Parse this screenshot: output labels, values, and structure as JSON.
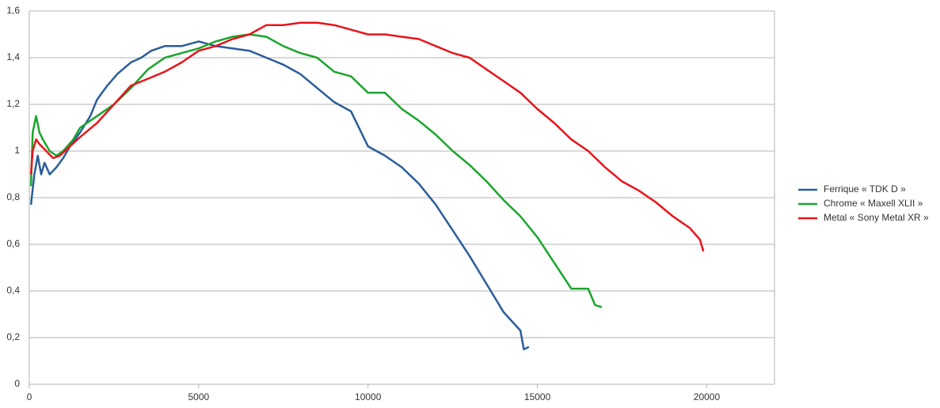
{
  "chart_data": {
    "type": "line",
    "xlim": [
      0,
      22000
    ],
    "xticks": [
      0,
      5000,
      10000,
      15000,
      20000
    ],
    "ylim": [
      0,
      1.6
    ],
    "yticks": [
      0,
      {
        "value": 0.2,
        "label": "0,2"
      },
      {
        "value": 0.4,
        "label": "0,4"
      },
      {
        "value": 0.6,
        "label": "0,6"
      },
      {
        "value": 0.8,
        "label": "0,8"
      },
      1,
      {
        "value": 1.2,
        "label": "1,2"
      },
      {
        "value": 1.4,
        "label": "1,4"
      },
      {
        "value": 1.6,
        "label": "1,6"
      }
    ],
    "grid": true,
    "legend": "right",
    "series": [
      {
        "name": "Ferrique « TDK D »",
        "color": "#2a5d9a",
        "x": [
          50,
          150,
          250,
          350,
          450,
          600,
          800,
          1000,
          1200,
          1500,
          1800,
          2000,
          2300,
          2600,
          3000,
          3300,
          3600,
          4000,
          4500,
          5000,
          5500,
          6000,
          6500,
          7000,
          7500,
          8000,
          8500,
          9000,
          9500,
          10000,
          10500,
          11000,
          11500,
          12000,
          12500,
          13000,
          13500,
          14000,
          14500,
          14600,
          14750
        ],
        "values": [
          0.77,
          0.9,
          0.98,
          0.9,
          0.95,
          0.9,
          0.93,
          0.97,
          1.02,
          1.08,
          1.15,
          1.22,
          1.28,
          1.33,
          1.38,
          1.4,
          1.43,
          1.45,
          1.45,
          1.47,
          1.45,
          1.44,
          1.43,
          1.4,
          1.37,
          1.33,
          1.27,
          1.21,
          1.17,
          1.02,
          0.98,
          0.93,
          0.86,
          0.77,
          0.66,
          0.55,
          0.43,
          0.31,
          0.23,
          0.15,
          0.16
        ]
      },
      {
        "name": "Chrome « Maxell XLII »",
        "color": "#1aa52b",
        "x": [
          50,
          100,
          200,
          300,
          400,
          600,
          800,
          1000,
          1300,
          1500,
          2000,
          2500,
          3000,
          3500,
          4000,
          4500,
          5000,
          5500,
          6000,
          6500,
          7000,
          7500,
          8000,
          8500,
          9000,
          9500,
          10000,
          10500,
          11000,
          11500,
          12000,
          12500,
          13000,
          13500,
          14000,
          14500,
          15000,
          15500,
          16000,
          16500,
          16700,
          16900
        ],
        "values": [
          0.85,
          1.08,
          1.15,
          1.08,
          1.05,
          1.0,
          0.98,
          1.0,
          1.05,
          1.1,
          1.15,
          1.2,
          1.27,
          1.35,
          1.4,
          1.42,
          1.44,
          1.47,
          1.49,
          1.5,
          1.49,
          1.45,
          1.42,
          1.4,
          1.34,
          1.32,
          1.25,
          1.25,
          1.18,
          1.13,
          1.07,
          1.0,
          0.94,
          0.87,
          0.79,
          0.72,
          0.63,
          0.52,
          0.41,
          0.41,
          0.34,
          0.33
        ]
      },
      {
        "name": "Metal « Sony Metal XR »",
        "color": "#e8141a",
        "x": [
          50,
          100,
          200,
          300,
          500,
          700,
          900,
          1200,
          1500,
          2000,
          2500,
          3000,
          3500,
          4000,
          4500,
          5000,
          5500,
          6000,
          6500,
          7000,
          7500,
          8000,
          8500,
          9000,
          9500,
          10000,
          10500,
          11000,
          11500,
          12000,
          12500,
          13000,
          13500,
          14000,
          14500,
          15000,
          15500,
          16000,
          16500,
          17000,
          17500,
          18000,
          18500,
          19000,
          19500,
          19800,
          19900
        ],
        "values": [
          0.9,
          1.0,
          1.05,
          1.03,
          1.0,
          0.97,
          0.98,
          1.02,
          1.06,
          1.12,
          1.2,
          1.28,
          1.31,
          1.34,
          1.38,
          1.43,
          1.45,
          1.48,
          1.5,
          1.54,
          1.54,
          1.55,
          1.55,
          1.54,
          1.52,
          1.5,
          1.5,
          1.49,
          1.48,
          1.45,
          1.42,
          1.4,
          1.35,
          1.3,
          1.25,
          1.18,
          1.12,
          1.05,
          1.0,
          0.93,
          0.87,
          0.83,
          0.78,
          0.72,
          0.67,
          0.62,
          0.57
        ]
      }
    ]
  }
}
